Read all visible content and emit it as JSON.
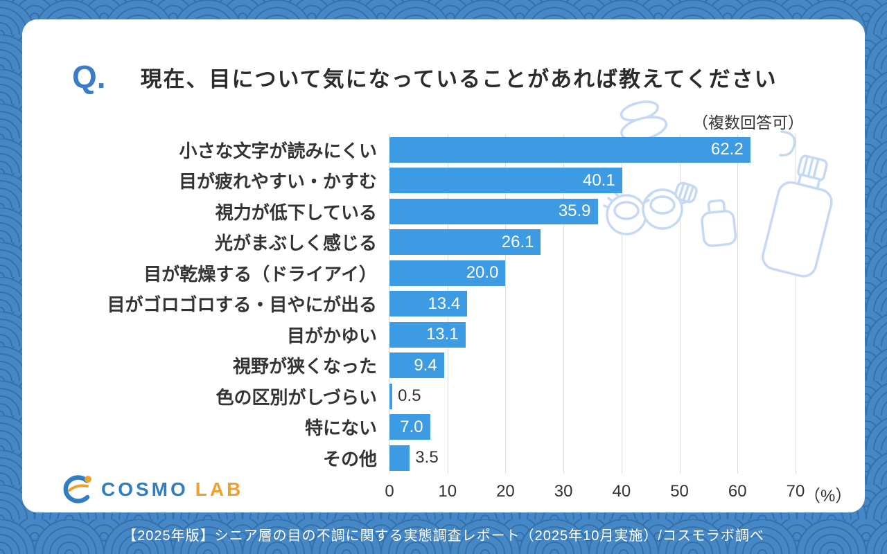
{
  "header": {
    "q_label": "Q.",
    "title": "現在、目について気になっていることがあれば教えてください",
    "note": "（複数回答可）"
  },
  "chart_data": {
    "type": "bar",
    "orientation": "horizontal",
    "title": "現在、目について気になっていることがあれば教えてください",
    "categories": [
      "小さな文字が読みにくい",
      "目が疲れやすい・かすむ",
      "視力が低下している",
      "光がまぶしく感じる",
      "目が乾燥する（ドライアイ）",
      "目がゴロゴロする・目やにが出る",
      "目がかゆい",
      "視野が狭くなった",
      "色の区別がしづらい",
      "特にない",
      "その他"
    ],
    "values": [
      62.2,
      40.1,
      35.9,
      26.1,
      20.0,
      13.4,
      13.1,
      9.4,
      0.5,
      7.0,
      3.5
    ],
    "xlim": [
      0,
      70
    ],
    "xticks": [
      0,
      10,
      20,
      30,
      40,
      50,
      60,
      70
    ],
    "x_unit_label": "（%）",
    "grid": "vertical",
    "legend": "none",
    "bar_color": "#3D9BE4",
    "value_label_decimals": 1
  },
  "logo": {
    "cosmo": "COSMO",
    "lab": "LAB"
  },
  "footer": {
    "caption": "【2025年版】シニア層の目の不調に関する実態調査レポート（2025年10月実施）/コスモラボ調べ"
  },
  "colors": {
    "background": "#4687C5",
    "pattern_line": "#3470AB",
    "card": "#FFFFFF",
    "accent_blue": "#3D7CC7",
    "bar": "#3D9BE4",
    "text": "#333333",
    "gridline": "#DCDCDC",
    "illustration": "#C6D9F4",
    "logo_blue": "#2F7EC3",
    "logo_orange": "#F0A02E",
    "footer_text": "#FFFFFF"
  }
}
